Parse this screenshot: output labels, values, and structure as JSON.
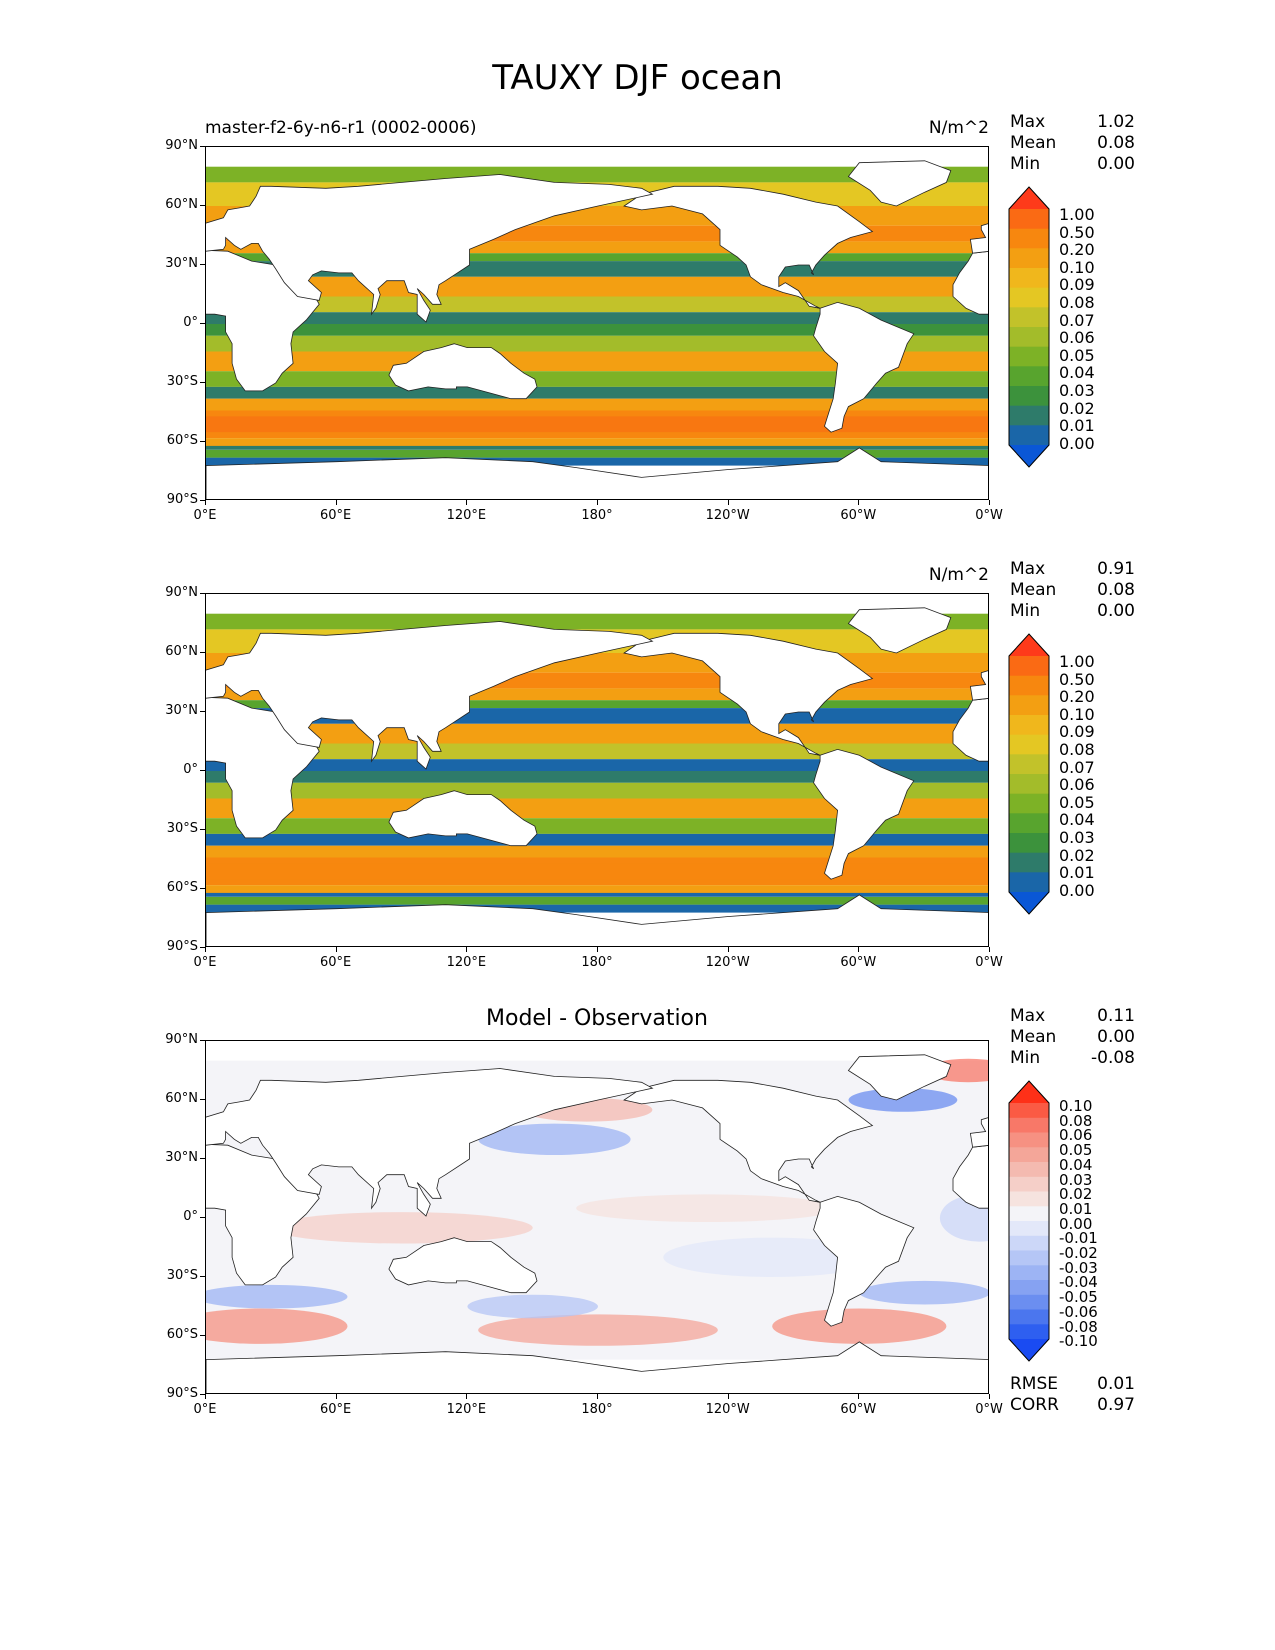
{
  "title": "TAUXY DJF ocean",
  "panels": [
    {
      "id": "model",
      "left_label": "master-f2-6y-n6-r1 (0002-0006)",
      "center_title": "",
      "units": "N/m^2",
      "stats": [
        {
          "label": "Max",
          "value": "1.02"
        },
        {
          "label": "Mean",
          "value": "0.08"
        },
        {
          "label": "Min",
          "value": "0.00"
        }
      ],
      "colorbar_labels": [
        "1.00",
        "0.50",
        "0.20",
        "0.10",
        "0.09",
        "0.08",
        "0.07",
        "0.06",
        "0.05",
        "0.04",
        "0.03",
        "0.02",
        "0.01",
        "0.00"
      ],
      "colorbar_colors": [
        "#fe3a1a",
        "#fa6a14",
        "#f7870f",
        "#f39f12",
        "#f0b71c",
        "#e4c723",
        "#c2c22a",
        "#a3bc2a",
        "#7db226",
        "#58a42e",
        "#3c923c",
        "#2e7b6a",
        "#1a66a8",
        "#0a57d6"
      ],
      "bottom_stats": []
    },
    {
      "id": "observation",
      "left_label": "",
      "center_title": "",
      "units": "N/m^2",
      "stats": [
        {
          "label": "Max",
          "value": "0.91"
        },
        {
          "label": "Mean",
          "value": "0.08"
        },
        {
          "label": "Min",
          "value": "0.00"
        }
      ],
      "colorbar_labels": [
        "1.00",
        "0.50",
        "0.20",
        "0.10",
        "0.09",
        "0.08",
        "0.07",
        "0.06",
        "0.05",
        "0.04",
        "0.03",
        "0.02",
        "0.01",
        "0.00"
      ],
      "colorbar_colors": [
        "#fe3a1a",
        "#fa6a14",
        "#f7870f",
        "#f39f12",
        "#f0b71c",
        "#e4c723",
        "#c2c22a",
        "#a3bc2a",
        "#7db226",
        "#58a42e",
        "#3c923c",
        "#2e7b6a",
        "#1a66a8",
        "#0a57d6"
      ],
      "bottom_stats": []
    },
    {
      "id": "difference",
      "left_label": "",
      "center_title": "Model - Observation",
      "units": "",
      "stats": [
        {
          "label": "Max",
          "value": "0.11"
        },
        {
          "label": "Mean",
          "value": "0.00"
        },
        {
          "label": "Min",
          "value": "-0.08"
        }
      ],
      "colorbar_labels": [
        "0.10",
        "0.08",
        "0.06",
        "0.05",
        "0.04",
        "0.03",
        "0.02",
        "0.01",
        "0.00",
        "-0.01",
        "-0.02",
        "-0.03",
        "-0.04",
        "-0.05",
        "-0.06",
        "-0.08",
        "-0.10"
      ],
      "colorbar_colors": [
        "#fe3018",
        "#fb5a44",
        "#f87868",
        "#f69182",
        "#f4a699",
        "#f4bab0",
        "#f5cfc8",
        "#f6e3df",
        "#f4f4f8",
        "#e3e8f9",
        "#ccd7f8",
        "#b5c6f6",
        "#9db4f4",
        "#86a2f2",
        "#6b8ef0",
        "#4b76ee",
        "#2e5ff0",
        "#1a4bf2"
      ],
      "bottom_stats": [
        {
          "label": "RMSE",
          "value": "0.01"
        },
        {
          "label": "CORR",
          "value": "0.97"
        }
      ]
    }
  ],
  "x_ticks": [
    "0°E",
    "60°E",
    "120°E",
    "180°",
    "120°W",
    "60°W",
    "0°W"
  ],
  "y_ticks": [
    "90°N",
    "60°N",
    "30°N",
    "0°",
    "30°S",
    "60°S",
    "90°S"
  ]
}
